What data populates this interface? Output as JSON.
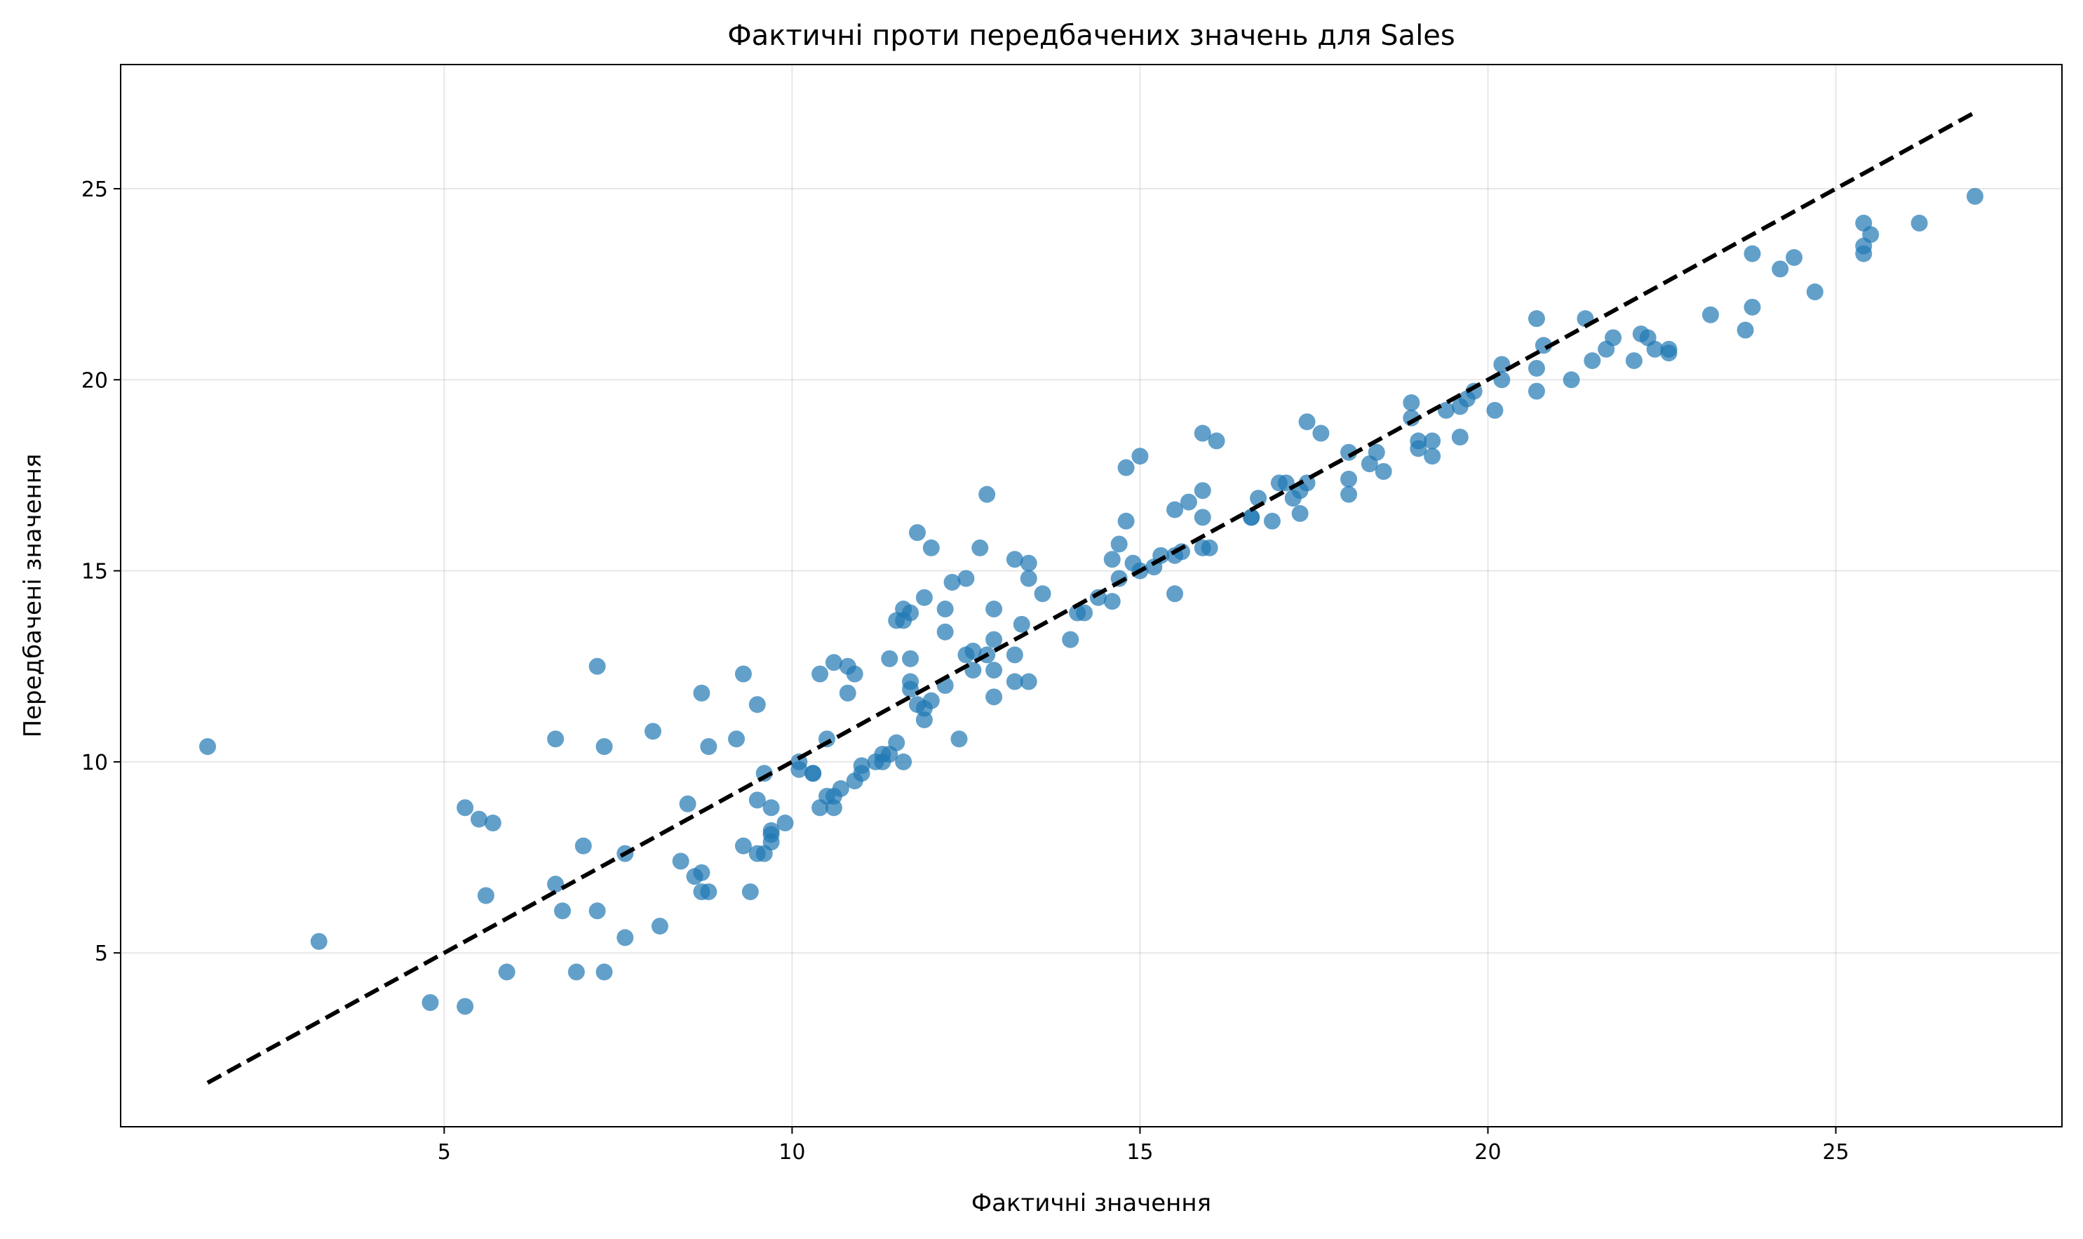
{
  "chart_data": {
    "type": "scatter",
    "title": "Фактичні проти передбачених значень для Sales",
    "xlabel": "Фактичні значення",
    "ylabel": "Передбачені значення",
    "xlim": [
      0.35,
      28.25
    ],
    "ylim": [
      0.45,
      28.25
    ],
    "xticks": [
      5,
      10,
      15,
      20,
      25
    ],
    "yticks": [
      5,
      10,
      15,
      20,
      25
    ],
    "xtick_labels": [
      "5",
      "10",
      "15",
      "20",
      "25"
    ],
    "ytick_labels": [
      "5",
      "10",
      "15",
      "20",
      "25"
    ],
    "grid": true,
    "point_color": "#1f77b4",
    "line_color": "#000000",
    "series": [
      {
        "type": "scatter",
        "points": [
          [
            1.6,
            10.4
          ],
          [
            3.2,
            5.3
          ],
          [
            4.8,
            3.7
          ],
          [
            5.3,
            3.6
          ],
          [
            5.3,
            8.8
          ],
          [
            5.5,
            8.5
          ],
          [
            5.6,
            6.5
          ],
          [
            5.7,
            8.4
          ],
          [
            5.9,
            4.5
          ],
          [
            6.6,
            10.6
          ],
          [
            6.6,
            6.8
          ],
          [
            6.7,
            6.1
          ],
          [
            6.9,
            4.5
          ],
          [
            7.0,
            7.8
          ],
          [
            7.2,
            12.5
          ],
          [
            7.2,
            6.1
          ],
          [
            7.3,
            10.4
          ],
          [
            7.3,
            4.5
          ],
          [
            7.6,
            7.6
          ],
          [
            7.6,
            5.4
          ],
          [
            8.0,
            10.8
          ],
          [
            8.1,
            5.7
          ],
          [
            8.4,
            7.4
          ],
          [
            8.5,
            8.9
          ],
          [
            8.6,
            7.0
          ],
          [
            8.7,
            11.8
          ],
          [
            8.7,
            7.1
          ],
          [
            8.7,
            6.6
          ],
          [
            8.8,
            10.4
          ],
          [
            8.8,
            6.6
          ],
          [
            9.2,
            10.6
          ],
          [
            9.3,
            12.3
          ],
          [
            9.3,
            7.8
          ],
          [
            9.4,
            6.6
          ],
          [
            9.5,
            11.5
          ],
          [
            9.5,
            9.0
          ],
          [
            9.5,
            7.6
          ],
          [
            9.6,
            9.7
          ],
          [
            9.6,
            7.6
          ],
          [
            9.7,
            8.8
          ],
          [
            9.7,
            8.2
          ],
          [
            9.7,
            8.1
          ],
          [
            9.7,
            7.9
          ],
          [
            9.9,
            8.4
          ],
          [
            10.1,
            10.0
          ],
          [
            10.1,
            9.8
          ],
          [
            10.3,
            9.7
          ],
          [
            10.3,
            9.7
          ],
          [
            10.4,
            12.3
          ],
          [
            10.4,
            8.8
          ],
          [
            10.5,
            10.6
          ],
          [
            10.5,
            9.1
          ],
          [
            10.6,
            12.6
          ],
          [
            10.6,
            9.1
          ],
          [
            10.6,
            8.8
          ],
          [
            10.7,
            9.3
          ],
          [
            10.8,
            12.5
          ],
          [
            10.8,
            11.8
          ],
          [
            10.9,
            12.3
          ],
          [
            10.9,
            9.5
          ],
          [
            11.0,
            9.9
          ],
          [
            11.0,
            9.7
          ],
          [
            11.2,
            10.0
          ],
          [
            11.3,
            10.2
          ],
          [
            11.3,
            10.0
          ],
          [
            11.4,
            12.7
          ],
          [
            11.4,
            10.2
          ],
          [
            11.5,
            13.7
          ],
          [
            11.5,
            10.5
          ],
          [
            11.6,
            14.0
          ],
          [
            11.6,
            13.7
          ],
          [
            11.6,
            10.0
          ],
          [
            11.7,
            13.9
          ],
          [
            11.7,
            12.7
          ],
          [
            11.7,
            12.1
          ],
          [
            11.7,
            11.9
          ],
          [
            11.8,
            16.0
          ],
          [
            11.8,
            11.5
          ],
          [
            11.9,
            14.3
          ],
          [
            11.9,
            11.4
          ],
          [
            11.9,
            11.1
          ],
          [
            12.0,
            15.6
          ],
          [
            12.0,
            11.6
          ],
          [
            12.2,
            14.0
          ],
          [
            12.2,
            13.4
          ],
          [
            12.2,
            12.0
          ],
          [
            12.3,
            14.7
          ],
          [
            12.4,
            10.6
          ],
          [
            12.5,
            14.8
          ],
          [
            12.5,
            12.8
          ],
          [
            12.6,
            12.9
          ],
          [
            12.6,
            12.4
          ],
          [
            12.7,
            15.6
          ],
          [
            12.8,
            17.0
          ],
          [
            12.8,
            12.8
          ],
          [
            12.9,
            14.0
          ],
          [
            12.9,
            13.2
          ],
          [
            12.9,
            12.4
          ],
          [
            12.9,
            11.7
          ],
          [
            13.2,
            15.3
          ],
          [
            13.2,
            12.8
          ],
          [
            13.2,
            12.1
          ],
          [
            13.3,
            13.6
          ],
          [
            13.4,
            15.2
          ],
          [
            13.4,
            14.8
          ],
          [
            13.4,
            12.1
          ],
          [
            13.6,
            14.4
          ],
          [
            14.0,
            13.2
          ],
          [
            14.1,
            13.9
          ],
          [
            14.2,
            13.9
          ],
          [
            14.4,
            14.3
          ],
          [
            14.6,
            15.3
          ],
          [
            14.6,
            14.2
          ],
          [
            14.7,
            15.7
          ],
          [
            14.7,
            14.8
          ],
          [
            14.8,
            17.7
          ],
          [
            14.8,
            16.3
          ],
          [
            14.9,
            15.2
          ],
          [
            15.0,
            18.0
          ],
          [
            15.0,
            15.0
          ],
          [
            15.2,
            15.1
          ],
          [
            15.3,
            15.4
          ],
          [
            15.5,
            16.6
          ],
          [
            15.5,
            15.4
          ],
          [
            15.5,
            14.4
          ],
          [
            15.6,
            15.5
          ],
          [
            15.7,
            16.8
          ],
          [
            15.9,
            18.6
          ],
          [
            15.9,
            17.1
          ],
          [
            15.9,
            16.4
          ],
          [
            15.9,
            15.6
          ],
          [
            16.0,
            15.6
          ],
          [
            16.1,
            18.4
          ],
          [
            16.6,
            16.4
          ],
          [
            16.6,
            16.4
          ],
          [
            16.7,
            16.9
          ],
          [
            16.9,
            16.3
          ],
          [
            17.0,
            17.3
          ],
          [
            17.1,
            17.3
          ],
          [
            17.2,
            16.9
          ],
          [
            17.3,
            17.1
          ],
          [
            17.3,
            16.5
          ],
          [
            17.4,
            18.9
          ],
          [
            17.4,
            17.3
          ],
          [
            17.6,
            18.6
          ],
          [
            18.0,
            18.1
          ],
          [
            18.0,
            17.4
          ],
          [
            18.0,
            17.0
          ],
          [
            18.3,
            17.8
          ],
          [
            18.4,
            18.1
          ],
          [
            18.5,
            17.6
          ],
          [
            18.9,
            19.4
          ],
          [
            18.9,
            19.0
          ],
          [
            19.0,
            18.4
          ],
          [
            19.0,
            18.2
          ],
          [
            19.2,
            18.4
          ],
          [
            19.2,
            18.0
          ],
          [
            19.4,
            19.2
          ],
          [
            19.6,
            19.3
          ],
          [
            19.6,
            18.5
          ],
          [
            19.7,
            19.5
          ],
          [
            19.8,
            19.7
          ],
          [
            20.1,
            19.2
          ],
          [
            20.2,
            20.4
          ],
          [
            20.2,
            20.0
          ],
          [
            20.7,
            21.6
          ],
          [
            20.7,
            20.3
          ],
          [
            20.7,
            19.7
          ],
          [
            20.8,
            20.9
          ],
          [
            21.2,
            20.0
          ],
          [
            21.4,
            21.6
          ],
          [
            21.5,
            20.5
          ],
          [
            21.7,
            20.8
          ],
          [
            21.8,
            21.1
          ],
          [
            22.1,
            20.5
          ],
          [
            22.2,
            21.2
          ],
          [
            22.3,
            21.1
          ],
          [
            22.4,
            20.8
          ],
          [
            22.6,
            20.8
          ],
          [
            22.6,
            20.7
          ],
          [
            23.2,
            21.7
          ],
          [
            23.7,
            21.3
          ],
          [
            23.8,
            23.3
          ],
          [
            23.8,
            21.9
          ],
          [
            24.2,
            22.9
          ],
          [
            24.4,
            23.2
          ],
          [
            24.7,
            22.3
          ],
          [
            25.4,
            24.1
          ],
          [
            25.4,
            23.5
          ],
          [
            25.4,
            23.3
          ],
          [
            25.5,
            23.8
          ],
          [
            26.2,
            24.1
          ],
          [
            27.0,
            24.8
          ]
        ]
      },
      {
        "type": "line",
        "style": "dashed",
        "points": [
          [
            1.6,
            1.6
          ],
          [
            27.0,
            27.0
          ]
        ]
      }
    ]
  }
}
